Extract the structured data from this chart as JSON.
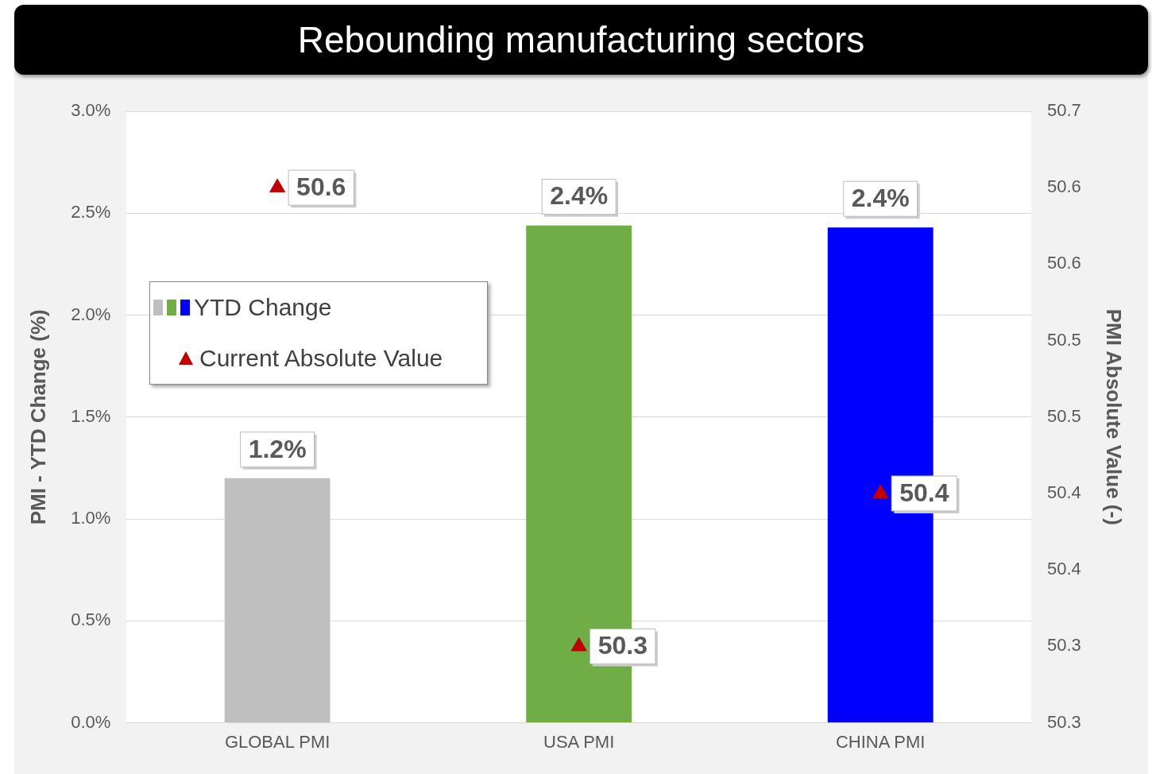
{
  "chart_data": {
    "type": "bar",
    "title": "Rebounding manufacturing sectors",
    "categories": [
      "GLOBAL PMI",
      "USA PMI",
      "CHINA PMI"
    ],
    "ylabel": "PMI - YTD Change (%)",
    "y2label": "PMI Absolute Value (-)",
    "ylim": [
      0,
      3
    ],
    "yticks": [
      {
        "value": 0,
        "label": "0.0%"
      },
      {
        "value": 0.5,
        "label": "0.5%"
      },
      {
        "value": 1,
        "label": "1.0%"
      },
      {
        "value": 1.5,
        "label": "1.5%"
      },
      {
        "value": 2,
        "label": "2.0%"
      },
      {
        "value": 2.5,
        "label": "2.5%"
      },
      {
        "value": 3,
        "label": "3.0%"
      }
    ],
    "y2lim": [
      50.25,
      50.65
    ],
    "y2ticks": [
      {
        "value": 50.25,
        "label": "50.3"
      },
      {
        "value": 50.3,
        "label": "50.3"
      },
      {
        "value": 50.35,
        "label": "50.4"
      },
      {
        "value": 50.4,
        "label": "50.4"
      },
      {
        "value": 50.45,
        "label": "50.5"
      },
      {
        "value": 50.5,
        "label": "50.5"
      },
      {
        "value": 50.55,
        "label": "50.6"
      },
      {
        "value": 50.6,
        "label": "50.6"
      },
      {
        "value": 50.65,
        "label": "50.7"
      }
    ],
    "grid": "y",
    "legend": "top left",
    "series": [
      {
        "name": "YTD Change",
        "colors": [
          "#bfbfbf",
          "#70ad47",
          "#0000ff"
        ],
        "values": [
          1.2,
          2.44,
          2.43
        ],
        "value_labels": [
          "1.2%",
          "2.4%",
          "2.4%"
        ]
      },
      {
        "name": "Current Absolute Value",
        "type": "scatter",
        "axis": "y2",
        "marker": "triangle",
        "color": "#c00000",
        "values": [
          50.6,
          50.3,
          50.4
        ],
        "value_labels": [
          "50.6",
          "50.3",
          "50.4"
        ]
      }
    ]
  }
}
